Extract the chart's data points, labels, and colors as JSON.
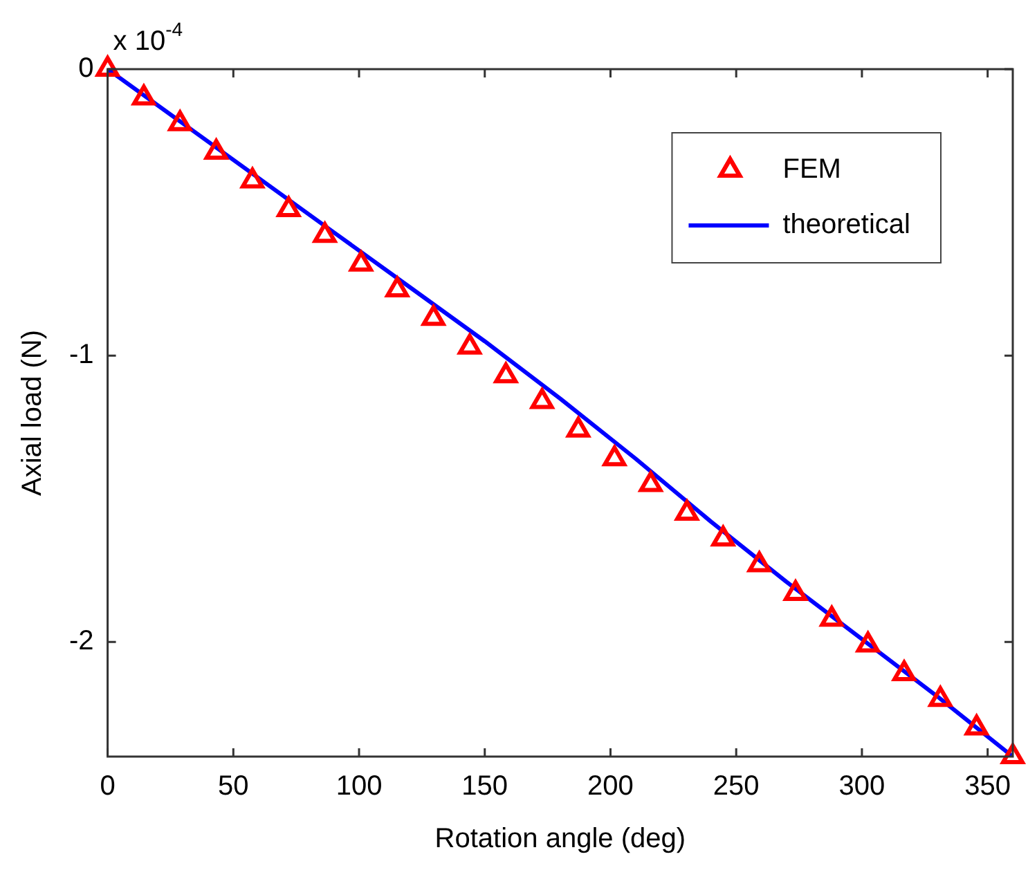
{
  "chart_data": {
    "type": "line",
    "xlabel": "Rotation angle (deg)",
    "ylabel": "Axial load (N)",
    "annotations": [
      "x 10$^{-4}$"
    ],
    "xlim": [
      0,
      360
    ],
    "xticks": [
      0,
      50,
      100,
      150,
      200,
      250,
      300,
      350
    ],
    "ylim": [
      -2.4,
      0
    ],
    "yticks": [
      0,
      -1,
      -2
    ],
    "grid": false,
    "legend": "top right",
    "series": [
      {
        "name": "FEM",
        "type": "scatter",
        "marker": "triangle",
        "color": "#ff0000",
        "x": [
          0,
          14.4,
          28.8,
          43.2,
          57.6,
          72,
          86.4,
          100.8,
          115.2,
          129.6,
          144,
          158.4,
          172.8,
          187.2,
          201.6,
          216,
          230.4,
          244.8,
          259.2,
          273.6,
          288,
          302.4,
          316.8,
          331.2,
          345.6,
          360
        ],
        "values": [
          0,
          -0.1,
          -0.19,
          -0.29,
          -0.39,
          -0.49,
          -0.58,
          -0.68,
          -0.77,
          -0.87,
          -0.97,
          -1.07,
          -1.16,
          -1.26,
          -1.36,
          -1.45,
          -1.55,
          -1.64,
          -1.73,
          -1.83,
          -1.92,
          -2.01,
          -2.11,
          -2.2,
          -2.3,
          -2.4
        ]
      },
      {
        "name": "theoretical",
        "type": "line",
        "marker": "none",
        "line_style": "solid",
        "color": "#0000ff",
        "x": [
          0,
          30,
          60,
          90,
          120,
          150,
          180,
          210,
          240,
          270,
          300,
          330,
          360
        ],
        "values": [
          0,
          -0.19,
          -0.38,
          -0.57,
          -0.76,
          -0.95,
          -1.15,
          -1.36,
          -1.58,
          -1.79,
          -1.99,
          -2.19,
          -2.4
        ]
      }
    ]
  }
}
